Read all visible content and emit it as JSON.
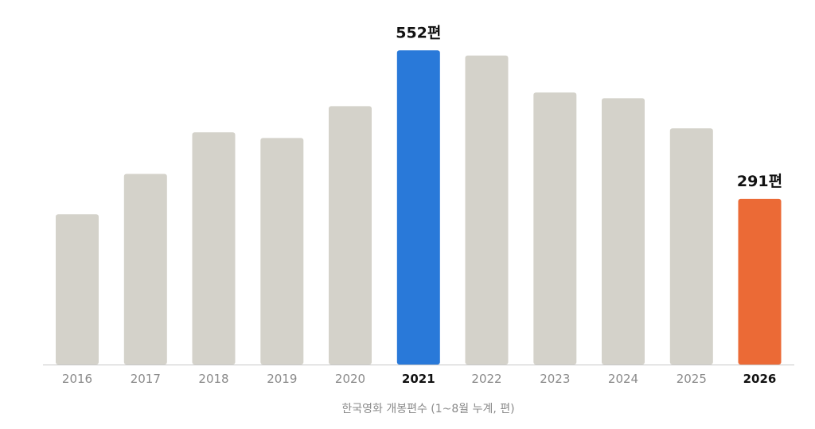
{
  "chart_data": {
    "type": "bar",
    "categories": [
      "2016",
      "2017",
      "2018",
      "2019",
      "2020",
      "2021",
      "2022",
      "2023",
      "2024",
      "2025",
      "2026"
    ],
    "values": [
      264,
      335,
      408,
      398,
      454,
      552,
      543,
      478,
      468,
      415,
      291
    ],
    "ylim": [
      0,
      565
    ],
    "grid": false,
    "legend": "none",
    "xlabel": "한국영화 개봉편수 (1~8월 누계, 편)",
    "data_labels": [
      {
        "category": "2021",
        "text": "552편"
      },
      {
        "category": "2026",
        "text": "291편"
      }
    ],
    "highlighted_ticks": [
      "2021",
      "2026"
    ]
  },
  "colors": {
    "default_bar": "#d4d2ca",
    "highlight_2021": "#2979d9",
    "highlight_2026": "#eb6a36",
    "baseline": "#c8c8c8"
  }
}
